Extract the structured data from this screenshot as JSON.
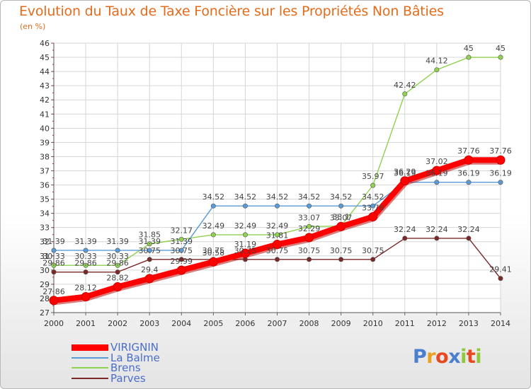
{
  "chart_data": {
    "type": "line",
    "title": "Evolution du Taux de Taxe Foncière sur les Propriétés Non Bâties",
    "ylabel": "(en %)",
    "xlabel": "",
    "ylim": [
      27,
      46
    ],
    "yticks": [
      "27",
      "28",
      "29",
      "30",
      "31",
      "32",
      "33",
      "34",
      "35",
      "36",
      "37",
      "38",
      "39",
      "40",
      "41",
      "42",
      "43",
      "44",
      "45",
      "46"
    ],
    "categories": [
      "2000",
      "2001",
      "2002",
      "2003",
      "2004",
      "2005",
      "2006",
      "2007",
      "2008",
      "2009",
      "2010",
      "2011",
      "2012",
      "2013",
      "2014"
    ],
    "series": [
      {
        "name": "VIRIGNIN",
        "color": "#ff0000",
        "values": [
          27.86,
          28.12,
          28.82,
          29.4,
          29.99,
          30.58,
          31.19,
          31.81,
          32.29,
          33.07,
          33.76,
          36.29,
          37.02,
          37.76,
          37.76
        ],
        "labels": [
          "27.86",
          "28.12",
          "28.82",
          "29.4",
          "29.99",
          "30.58",
          "31.19",
          "31.81",
          "32.29",
          "33.07",
          "33.76",
          "36.29",
          "37.02",
          "37.76",
          "37.76"
        ]
      },
      {
        "name": "La Balme",
        "color": "#5b9bd5",
        "values": [
          31.39,
          31.39,
          31.39,
          31.39,
          31.39,
          34.52,
          34.52,
          34.52,
          34.52,
          34.52,
          34.52,
          36.19,
          36.19,
          36.19,
          36.19
        ],
        "labels": [
          "31.39",
          "31.39",
          "31.39",
          "31.39",
          "31.39",
          "34.52",
          "34.52",
          "34.52",
          "34.52",
          "34.52",
          "34.52",
          "36.19",
          "36.19",
          "36.19",
          "36.19"
        ]
      },
      {
        "name": "Brens",
        "color": "#8fd150",
        "values": [
          30.33,
          30.33,
          30.33,
          31.85,
          32.17,
          32.49,
          32.49,
          32.49,
          33.07,
          33.1,
          35.97,
          42.42,
          44.12,
          45,
          45
        ],
        "labels": [
          "30.33",
          "30.33",
          "30.33",
          "31.85",
          "32.17",
          "32.49",
          "32.49",
          "32.49",
          "33.07",
          "33.1",
          "35.97",
          "42.42",
          "44.12",
          "45",
          "45"
        ]
      },
      {
        "name": "Parves",
        "color": "#7b2828",
        "values": [
          29.86,
          29.86,
          29.86,
          30.75,
          30.75,
          30.75,
          30.75,
          30.75,
          30.75,
          30.75,
          30.75,
          32.24,
          32.24,
          32.24,
          29.41
        ],
        "labels": [
          "29.86",
          "29.86",
          "29.86",
          "30.75",
          "30.75",
          "30.75",
          "30.75",
          "30.75",
          "30.75",
          "30.75",
          "30.75",
          "32.24",
          "32.24",
          "32.24",
          "29.41"
        ]
      }
    ]
  },
  "legend": [
    {
      "label": "VIRIGNIN",
      "color": "#ff0000"
    },
    {
      "label": "La Balme",
      "color": "#5b9bd5"
    },
    {
      "label": "Brens",
      "color": "#8fd150"
    },
    {
      "label": "Parves",
      "color": "#7b2828"
    }
  ],
  "logo": {
    "text": "Proxiti",
    "letters": [
      "P",
      "r",
      "o",
      "x",
      "i",
      "t",
      "i"
    ],
    "colors": [
      "#4a7fd0",
      "#e8a020",
      "#e84820",
      "#4a7fd0",
      "#8fc83c",
      "#e84820",
      "#8fc83c"
    ]
  }
}
